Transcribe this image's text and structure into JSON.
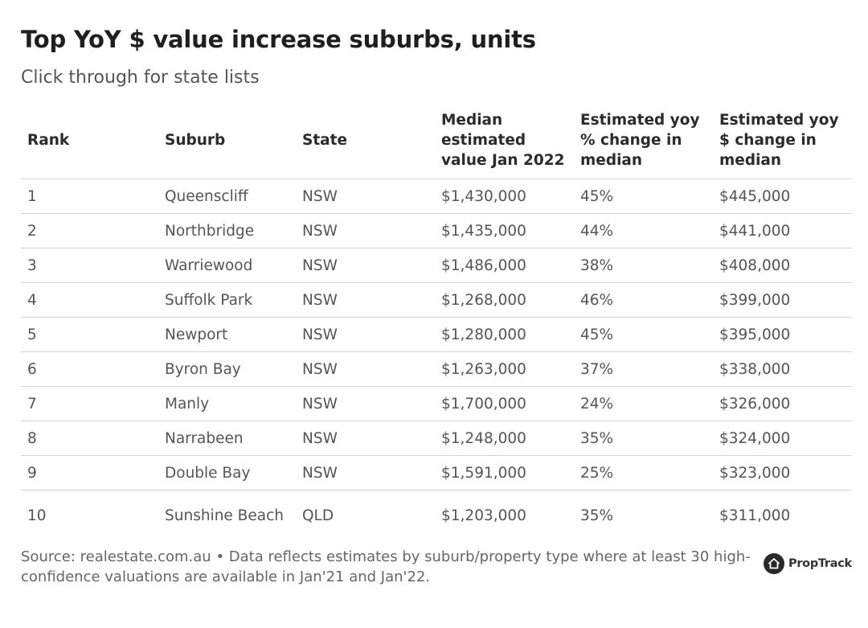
{
  "title": "Top YoY $ value increase suburbs, units",
  "subtitle": "Click through for state lists",
  "chart_data": {
    "type": "table",
    "columns": [
      "Rank",
      "Suburb",
      "State",
      "Median estimated value Jan 2022",
      "Estimated yoy % change in median",
      "Estimated yoy $ change in median"
    ],
    "rows": [
      [
        "1",
        "Queenscliff",
        "NSW",
        "$1,430,000",
        "45%",
        "$445,000"
      ],
      [
        "2",
        "Northbridge",
        "NSW",
        "$1,435,000",
        "44%",
        "$441,000"
      ],
      [
        "3",
        "Warriewood",
        "NSW",
        "$1,486,000",
        "38%",
        "$408,000"
      ],
      [
        "4",
        "Suffolk Park",
        "NSW",
        "$1,268,000",
        "46%",
        "$399,000"
      ],
      [
        "5",
        "Newport",
        "NSW",
        "$1,280,000",
        "45%",
        "$395,000"
      ],
      [
        "6",
        "Byron Bay",
        "NSW",
        "$1,263,000",
        "37%",
        "$338,000"
      ],
      [
        "7",
        "Manly",
        "NSW",
        "$1,700,000",
        "24%",
        "$326,000"
      ],
      [
        "8",
        "Narrabeen",
        "NSW",
        "$1,248,000",
        "35%",
        "$324,000"
      ],
      [
        "9",
        "Double Bay",
        "NSW",
        "$1,591,000",
        "25%",
        "$323,000"
      ],
      [
        "10",
        "Sunshine Beach",
        "QLD",
        "$1,203,000",
        "35%",
        "$311,000"
      ]
    ]
  },
  "footer": {
    "source": "Source: realestate.com.au • Data reflects estimates by suburb/property type where at least 30 high-confidence valuations are available in Jan'21 and Jan'22.",
    "logo_text": "PropTrack",
    "logo_icon": "house-icon"
  }
}
